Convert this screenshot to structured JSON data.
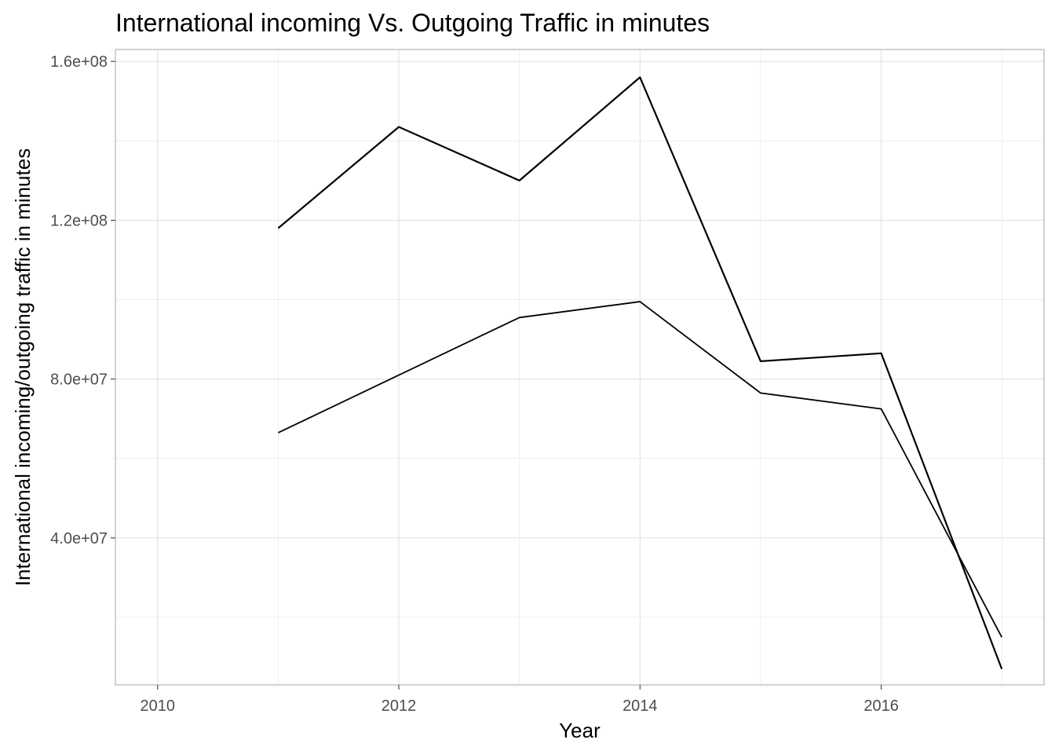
{
  "chart_data": {
    "type": "line",
    "title": "International incoming Vs. Outgoing Traffic in minutes",
    "xlabel": "Year",
    "ylabel": "International incoming/outgoing traffic in minutes",
    "xlim": [
      2009.65,
      2017.35
    ],
    "ylim": [
      3000000.0,
      163000000.0
    ],
    "x_ticks": [
      2010,
      2012,
      2014,
      2016
    ],
    "x_tick_labels": [
      "2010",
      "2012",
      "2014",
      "2016"
    ],
    "y_ticks": [
      40000000.0,
      80000000.0,
      120000000.0,
      160000000.0
    ],
    "y_tick_labels": [
      "4.0e+07",
      "8.0e+07",
      "1.2e+08",
      "1.6e+08"
    ],
    "grid": true,
    "legend": "none",
    "x": [
      2011,
      2012,
      2013,
      2014,
      2015,
      2016,
      2017
    ],
    "series": [
      {
        "values": [
          118000000,
          143500000,
          130000000,
          156000000,
          84500000,
          86500000,
          7000000
        ],
        "color": "#000000"
      },
      {
        "values": [
          66500000,
          81000000,
          95500000,
          99500000,
          76500000,
          72500000,
          15000000
        ],
        "color": "#000000"
      }
    ]
  }
}
